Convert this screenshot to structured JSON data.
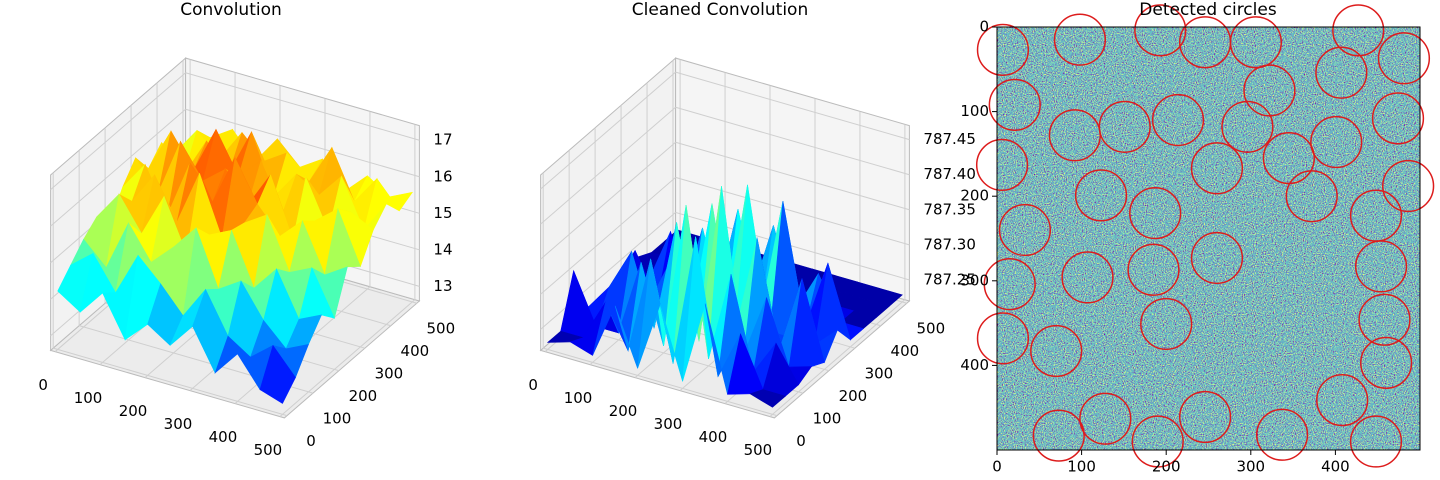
{
  "chart_data": [
    {
      "type": "surface3d",
      "title": "Convolution",
      "colormap": "jet",
      "x": [
        0,
        50,
        100,
        150,
        200,
        250,
        300,
        350,
        400,
        450,
        500
      ],
      "y": [
        0,
        50,
        100,
        150,
        200,
        250,
        300,
        350,
        400,
        450,
        500
      ],
      "z": [
        [
          14.2,
          13.8,
          14.5,
          13.4,
          14.0,
          13.6,
          14.3,
          13.2,
          13.9,
          13.1,
          12.9
        ],
        [
          14.6,
          15.1,
          14.2,
          15.4,
          14.8,
          14.1,
          15.0,
          13.9,
          13.5,
          14.0,
          13.3
        ],
        [
          15.0,
          14.4,
          15.8,
          14.9,
          15.5,
          16.2,
          14.7,
          15.1,
          14.2,
          13.6,
          13.9
        ],
        [
          15.3,
          16.1,
          15.2,
          16.4,
          15.0,
          15.7,
          16.0,
          14.6,
          15.3,
          14.1,
          14.4
        ],
        [
          14.8,
          15.6,
          16.5,
          15.4,
          16.9,
          15.3,
          15.9,
          16.3,
          14.9,
          15.2,
          14.0
        ],
        [
          15.5,
          16.3,
          15.1,
          16.7,
          15.8,
          17.2,
          16.1,
          15.4,
          16.0,
          14.7,
          15.1
        ],
        [
          16.0,
          15.2,
          16.8,
          15.9,
          16.4,
          15.6,
          16.6,
          15.0,
          15.7,
          16.2,
          14.8
        ],
        [
          15.4,
          16.6,
          15.7,
          17.0,
          15.9,
          16.5,
          15.3,
          16.4,
          15.1,
          15.8,
          15.5
        ],
        [
          15.8,
          15.1,
          16.2,
          15.5,
          16.8,
          15.2,
          16.0,
          15.6,
          16.3,
          15.0,
          15.9
        ],
        [
          15.2,
          16.0,
          15.4,
          16.3,
          15.7,
          16.1,
          15.5,
          16.6,
          15.3,
          16.1,
          15.4
        ],
        [
          14.9,
          15.5,
          15.9,
          15.2,
          16.0,
          15.4,
          15.8,
          15.1,
          15.7,
          15.3,
          15.6
        ]
      ],
      "xlim": [
        -10,
        510
      ],
      "ylim": [
        -10,
        510
      ],
      "zlim": [
        12.6,
        17.4
      ],
      "xticks": [
        0,
        100,
        200,
        300,
        400,
        500
      ],
      "yticks": [
        0,
        100,
        200,
        300,
        400,
        500
      ],
      "zticks": [
        13,
        14,
        15,
        16,
        17
      ]
    },
    {
      "type": "surface3d",
      "title": "Cleaned Convolution",
      "colormap": "jet",
      "x": [
        0,
        50,
        100,
        150,
        200,
        250,
        300,
        350,
        400,
        450,
        500
      ],
      "y": [
        0,
        50,
        100,
        150,
        200,
        250,
        300,
        350,
        400,
        450,
        500
      ],
      "z": [
        [
          787.23,
          787.24,
          787.23,
          787.31,
          787.23,
          787.33,
          787.23,
          787.35,
          787.23,
          787.24,
          787.23
        ],
        [
          787.23,
          787.23,
          787.29,
          787.23,
          787.37,
          787.23,
          787.42,
          787.23,
          787.3,
          787.23,
          787.23
        ],
        [
          787.3,
          787.23,
          787.23,
          787.34,
          787.23,
          787.44,
          787.23,
          787.36,
          787.23,
          787.28,
          787.23
        ],
        [
          787.23,
          787.27,
          787.33,
          787.23,
          787.39,
          787.23,
          787.46,
          787.23,
          787.32,
          787.23,
          787.24
        ],
        [
          787.23,
          787.23,
          787.23,
          787.3,
          787.23,
          787.41,
          787.23,
          787.38,
          787.23,
          787.34,
          787.23
        ],
        [
          787.23,
          787.29,
          787.23,
          787.23,
          787.35,
          787.23,
          787.43,
          787.23,
          787.23,
          787.23,
          787.26
        ],
        [
          787.23,
          787.23,
          787.31,
          787.23,
          787.23,
          787.37,
          787.23,
          787.4,
          787.23,
          787.33,
          787.23
        ],
        [
          787.24,
          787.23,
          787.23,
          787.28,
          787.23,
          787.23,
          787.34,
          787.23,
          787.29,
          787.23,
          787.23
        ],
        [
          787.23,
          787.23,
          787.23,
          787.23,
          787.23,
          787.23,
          787.23,
          787.23,
          787.23,
          787.23,
          787.23
        ],
        [
          787.23,
          787.23,
          787.23,
          787.23,
          787.23,
          787.23,
          787.23,
          787.23,
          787.23,
          787.23,
          787.23
        ],
        [
          787.23,
          787.23,
          787.23,
          787.23,
          787.23,
          787.23,
          787.23,
          787.23,
          787.23,
          787.23,
          787.23
        ]
      ],
      "xlim": [
        -10,
        510
      ],
      "ylim": [
        -10,
        510
      ],
      "zlim": [
        787.22,
        787.47
      ],
      "xticks": [
        0,
        100,
        200,
        300,
        400,
        500
      ],
      "yticks": [
        0,
        100,
        200,
        300,
        400,
        500
      ],
      "zticks": [
        787.25,
        {
          "value": 787.3,
          "label": "787.30"
        },
        787.35,
        {
          "value": 787.4,
          "label": "787.40"
        },
        787.45
      ]
    },
    {
      "type": "image",
      "title": "Detected circles",
      "circles": {
        "x": [
          7,
          98,
          193,
          246,
          306,
          427,
          481,
          407,
          322,
          21,
          92,
          151,
          214,
          296,
          474,
          401,
          345,
          6,
          260,
          123,
          372,
          486,
          187,
          448,
          33,
          260,
          185,
          107,
          454,
          15,
          200,
          458,
          7,
          70,
          460,
          408,
          128,
          246,
          73,
          190,
          337,
          448
        ],
        "y": [
          27,
          15,
          4,
          18,
          18,
          4,
          37,
          54,
          75,
          92,
          128,
          118,
          110,
          118,
          108,
          136,
          155,
          163,
          167,
          199,
          200,
          188,
          220,
          223,
          240,
          273,
          287,
          296,
          283,
          304,
          351,
          346,
          368,
          383,
          397,
          441,
          463,
          461,
          483,
          490,
          482,
          490
        ]
      },
      "radius": 30,
      "circle_color": "#dd1c1c",
      "xlim": [
        0,
        500
      ],
      "ylim": [
        500,
        0
      ],
      "xticks": [
        0,
        100,
        200,
        300,
        400
      ],
      "yticks": [
        0,
        100,
        200,
        300,
        400
      ]
    }
  ]
}
